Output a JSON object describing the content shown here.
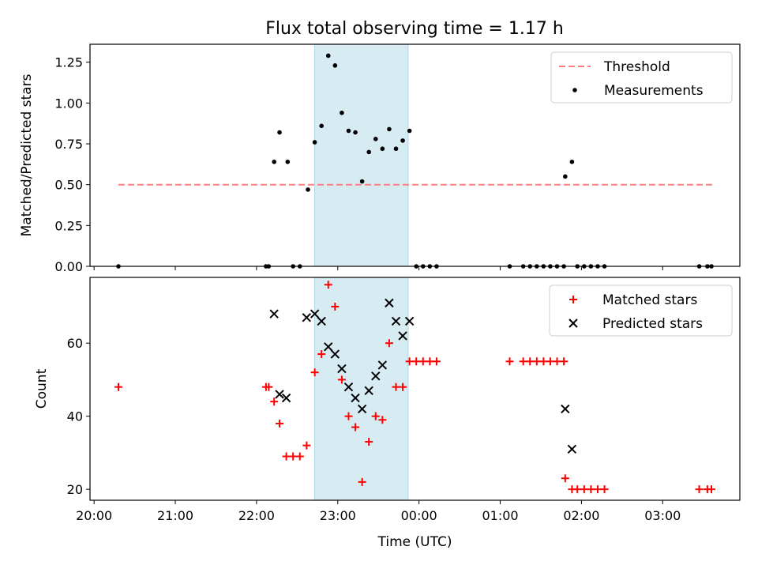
{
  "title": "Flux total observing time = 1.17 h",
  "chart_data": [
    {
      "type": "scatter",
      "ylabel": "Matched/Predicted stars",
      "xlim": [
        "19:57",
        "03:57"
      ],
      "ylim": [
        0,
        1.36
      ],
      "yticks": [
        0.0,
        0.25,
        0.5,
        0.75,
        1.0,
        1.25
      ],
      "ytick_labels": [
        "0.00",
        "0.25",
        "0.50",
        "0.75",
        "1.00",
        "1.25"
      ],
      "shaded_span": [
        "22:43",
        "23:52"
      ],
      "threshold": {
        "name": "Threshold",
        "y": 0.5,
        "x": [
          "20:18",
          "03:38"
        ],
        "color": "#ff7f7f"
      },
      "legend": {
        "position": "upper right",
        "entries": [
          "Threshold",
          "Measurements"
        ]
      },
      "series": [
        {
          "name": "Measurements",
          "color": "#000000",
          "marker": "dot",
          "points": [
            [
              "20:18",
              0
            ],
            [
              "22:07",
              0
            ],
            [
              "22:09",
              0
            ],
            [
              "22:13",
              0.64
            ],
            [
              "22:17",
              0.82
            ],
            [
              "22:23",
              0.64
            ],
            [
              "22:27",
              0
            ],
            [
              "22:32",
              0
            ],
            [
              "22:38",
              0.47
            ],
            [
              "22:43",
              0.76
            ],
            [
              "22:48",
              0.86
            ],
            [
              "22:53",
              1.29
            ],
            [
              "22:58",
              1.23
            ],
            [
              "23:03",
              0.94
            ],
            [
              "23:08",
              0.83
            ],
            [
              "23:13",
              0.82
            ],
            [
              "23:18",
              0.52
            ],
            [
              "23:23",
              0.7
            ],
            [
              "23:28",
              0.78
            ],
            [
              "23:33",
              0.72
            ],
            [
              "23:38",
              0.84
            ],
            [
              "23:43",
              0.72
            ],
            [
              "23:48",
              0.77
            ],
            [
              "23:53",
              0.83
            ],
            [
              "23:58",
              0
            ],
            [
              "00:03",
              0
            ],
            [
              "00:08",
              0
            ],
            [
              "00:13",
              0
            ],
            [
              "01:07",
              0
            ],
            [
              "01:17",
              0
            ],
            [
              "01:22",
              0
            ],
            [
              "01:27",
              0
            ],
            [
              "01:32",
              0
            ],
            [
              "01:37",
              0
            ],
            [
              "01:42",
              0
            ],
            [
              "01:47",
              0
            ],
            [
              "01:48",
              0.55
            ],
            [
              "01:53",
              0.64
            ],
            [
              "01:57",
              0
            ],
            [
              "02:02",
              0
            ],
            [
              "02:07",
              0
            ],
            [
              "02:12",
              0
            ],
            [
              "02:17",
              0
            ],
            [
              "03:27",
              0
            ],
            [
              "03:33",
              0
            ],
            [
              "03:36",
              0
            ]
          ]
        }
      ]
    },
    {
      "type": "scatter",
      "ylabel": "Count",
      "xlabel": "Time (UTC)",
      "xlim": [
        "19:57",
        "03:57"
      ],
      "ylim": [
        17,
        78
      ],
      "yticks": [
        20,
        40,
        60
      ],
      "ytick_labels": [
        "20",
        "40",
        "60"
      ],
      "xticks": [
        "20:00",
        "21:00",
        "22:00",
        "23:00",
        "00:00",
        "01:00",
        "02:00",
        "03:00"
      ],
      "shaded_span": [
        "22:43",
        "23:52"
      ],
      "legend": {
        "position": "upper right",
        "entries": [
          "Matched stars",
          "Predicted stars"
        ]
      },
      "series": [
        {
          "name": "Matched stars",
          "color": "#ff0000",
          "marker": "plus",
          "points": [
            [
              "20:18",
              48
            ],
            [
              "22:07",
              48
            ],
            [
              "22:09",
              48
            ],
            [
              "22:13",
              44
            ],
            [
              "22:17",
              38
            ],
            [
              "22:22",
              29
            ],
            [
              "22:27",
              29
            ],
            [
              "22:32",
              29
            ],
            [
              "22:37",
              32
            ],
            [
              "22:43",
              52
            ],
            [
              "22:48",
              57
            ],
            [
              "22:53",
              76
            ],
            [
              "22:58",
              70
            ],
            [
              "23:03",
              50
            ],
            [
              "23:08",
              40
            ],
            [
              "23:13",
              37
            ],
            [
              "23:18",
              22
            ],
            [
              "23:23",
              33
            ],
            [
              "23:28",
              40
            ],
            [
              "23:33",
              39
            ],
            [
              "23:38",
              60
            ],
            [
              "23:43",
              48
            ],
            [
              "23:48",
              48
            ],
            [
              "23:53",
              55
            ],
            [
              "23:58",
              55
            ],
            [
              "00:03",
              55
            ],
            [
              "00:08",
              55
            ],
            [
              "00:13",
              55
            ],
            [
              "01:07",
              55
            ],
            [
              "01:17",
              55
            ],
            [
              "01:22",
              55
            ],
            [
              "01:27",
              55
            ],
            [
              "01:32",
              55
            ],
            [
              "01:37",
              55
            ],
            [
              "01:42",
              55
            ],
            [
              "01:47",
              55
            ],
            [
              "01:48",
              23
            ],
            [
              "01:53",
              20
            ],
            [
              "01:57",
              20
            ],
            [
              "02:02",
              20
            ],
            [
              "02:07",
              20
            ],
            [
              "02:12",
              20
            ],
            [
              "02:17",
              20
            ],
            [
              "03:27",
              20
            ],
            [
              "03:33",
              20
            ],
            [
              "03:36",
              20
            ]
          ]
        },
        {
          "name": "Predicted stars",
          "color": "#000000",
          "marker": "x",
          "points": [
            [
              "22:13",
              68
            ],
            [
              "22:17",
              46
            ],
            [
              "22:22",
              45
            ],
            [
              "22:37",
              67
            ],
            [
              "22:43",
              68
            ],
            [
              "22:48",
              66
            ],
            [
              "22:53",
              59
            ],
            [
              "22:58",
              57
            ],
            [
              "23:03",
              53
            ],
            [
              "23:08",
              48
            ],
            [
              "23:13",
              45
            ],
            [
              "23:18",
              42
            ],
            [
              "23:23",
              47
            ],
            [
              "23:28",
              51
            ],
            [
              "23:33",
              54
            ],
            [
              "23:38",
              71
            ],
            [
              "23:43",
              66
            ],
            [
              "23:48",
              62
            ],
            [
              "23:53",
              66
            ],
            [
              "01:48",
              42
            ],
            [
              "01:53",
              31
            ]
          ]
        }
      ]
    }
  ]
}
